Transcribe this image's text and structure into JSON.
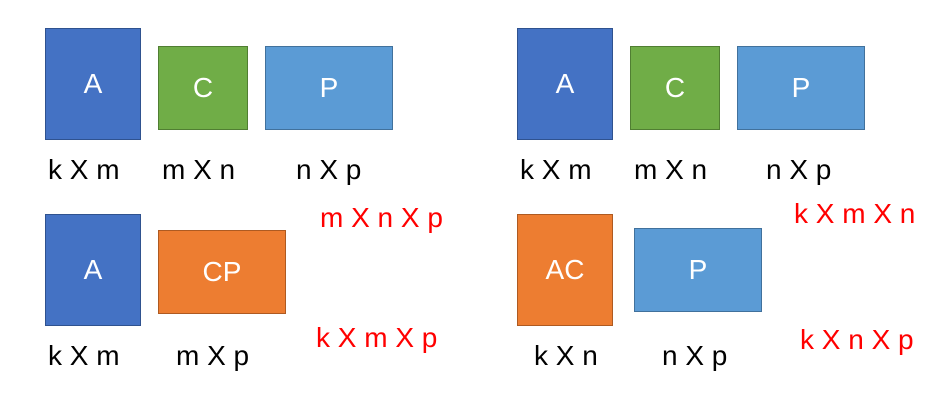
{
  "colors": {
    "matrix_a": "#4472c4",
    "matrix_c": "#70ad47",
    "matrix_p": "#5b9bd5",
    "product": "#ed7d31",
    "cost_text": "#ff0000"
  },
  "top_left": {
    "boxes": [
      "A",
      "C",
      "P"
    ],
    "dims": [
      "k X m",
      "m X n",
      "n X p"
    ]
  },
  "top_right": {
    "boxes": [
      "A",
      "C",
      "P"
    ],
    "dims": [
      "k X m",
      "m X n",
      "n X p"
    ]
  },
  "bottom_left": {
    "boxes": [
      "A",
      "CP"
    ],
    "dims": [
      "k X m",
      "m X p"
    ],
    "cost_first": "m X n X p",
    "cost_second": "k X m X p"
  },
  "bottom_right": {
    "boxes": [
      "AC",
      "P"
    ],
    "dims": [
      "k X n",
      "n X p"
    ],
    "cost_first": "k X m X n",
    "cost_second": "k X n X p"
  }
}
